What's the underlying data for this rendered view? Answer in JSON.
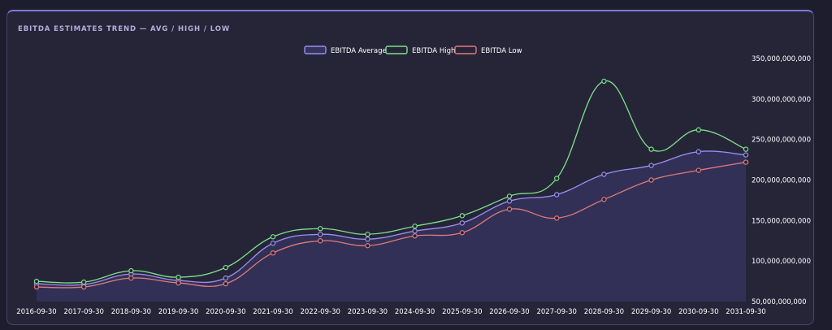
{
  "card": {
    "title": "EBITDA ESTIMATES TREND — AVG / HIGH / LOW"
  },
  "colors": {
    "background": "#262538",
    "accent": "#7f78d8",
    "average": "#9a8ff0",
    "high": "#7ee08a",
    "low": "#e07a7a",
    "area_fill": "#35325c"
  },
  "chart_data": {
    "type": "line",
    "title": "EBITDA ESTIMATES TREND — AVG / HIGH / LOW",
    "xlabel": "",
    "ylabel": "",
    "categories": [
      "2016-09-30",
      "2017-09-30",
      "2018-09-30",
      "2019-09-30",
      "2020-09-30",
      "2021-09-30",
      "2022-09-30",
      "2023-09-30",
      "2024-09-30",
      "2025-09-30",
      "2026-09-30",
      "2027-09-30",
      "2028-09-30",
      "2029-09-30",
      "2030-09-30",
      "2031-09-30"
    ],
    "yticks": [
      {
        "value": 50000000000,
        "label": "50,000,000,000"
      },
      {
        "value": 100000000000,
        "label": "100,000,000,000"
      },
      {
        "value": 150000000000,
        "label": "150,000,000,000"
      },
      {
        "value": 200000000000,
        "label": "200,000,000,000"
      },
      {
        "value": 250000000000,
        "label": "250,000,000,000"
      },
      {
        "value": 300000000000,
        "label": "300,000,000,000"
      },
      {
        "value": 350000000000,
        "label": "350,000,000,000"
      }
    ],
    "ylim": [
      50000000000,
      350000000000
    ],
    "y_axis_position": "right",
    "grid": false,
    "legend_position": "top-center",
    "series": [
      {
        "name": "EBITDA Average",
        "color": "#9a8ff0",
        "filled": true,
        "values": [
          72000000000,
          71000000000,
          84000000000,
          76000000000,
          79000000000,
          122000000000,
          133000000000,
          127000000000,
          137000000000,
          147000000000,
          174000000000,
          182000000000,
          207000000000,
          218000000000,
          235000000000,
          231000000000
        ]
      },
      {
        "name": "EBITDA High",
        "color": "#7ee08a",
        "filled": false,
        "values": [
          75000000000,
          74000000000,
          88000000000,
          80000000000,
          92000000000,
          130000000000,
          140000000000,
          133000000000,
          143000000000,
          156000000000,
          180000000000,
          202000000000,
          322000000000,
          238000000000,
          262000000000,
          238000000000
        ]
      },
      {
        "name": "EBITDA Low",
        "color": "#e07a7a",
        "filled": false,
        "values": [
          68000000000,
          68000000000,
          79000000000,
          73000000000,
          72000000000,
          110000000000,
          125000000000,
          119000000000,
          131000000000,
          135000000000,
          164000000000,
          153000000000,
          176000000000,
          200000000000,
          212000000000,
          222000000000
        ]
      }
    ]
  }
}
